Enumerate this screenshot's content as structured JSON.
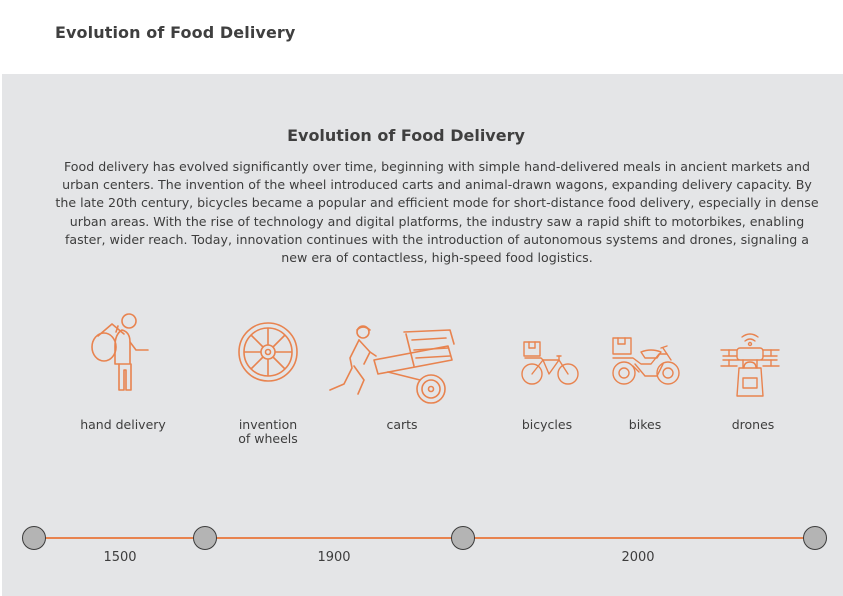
{
  "header": {
    "title": "Evolution of Food Delivery"
  },
  "panel": {
    "title": "Evolution of Food Delivery",
    "description": "Food delivery has evolved significantly over time, beginning with simple hand-delivered meals in ancient markets and urban centers. The invention of the wheel introduced carts and animal-drawn wagons, expanding delivery capacity. By the late 20th century, bicycles became a popular and efficient mode for short-distance food delivery, especially in dense urban areas. With the rise of technology and digital platforms, the industry saw a rapid shift to motorbikes, enabling faster, wider reach. Today, innovation continues with the introduction of autonomous systems and drones, signaling a new era of contactless, high-speed food logistics."
  },
  "stages": [
    {
      "label": "hand delivery",
      "icon": "hand-delivery-icon"
    },
    {
      "label": "invention\nof wheels",
      "icon": "wheel-icon"
    },
    {
      "label": "carts",
      "icon": "cart-icon"
    },
    {
      "label": "bicycles",
      "icon": "bicycle-icon"
    },
    {
      "label": "bikes",
      "icon": "motorbike-icon"
    },
    {
      "label": "drones",
      "icon": "drone-icon"
    }
  ],
  "timeline": {
    "years": [
      "1500",
      "1900",
      "2000"
    ]
  },
  "colors": {
    "accent": "#e8834f",
    "panel": "#e4e5e7",
    "node": "#b4b4b4",
    "text": "#3d3d3d"
  }
}
